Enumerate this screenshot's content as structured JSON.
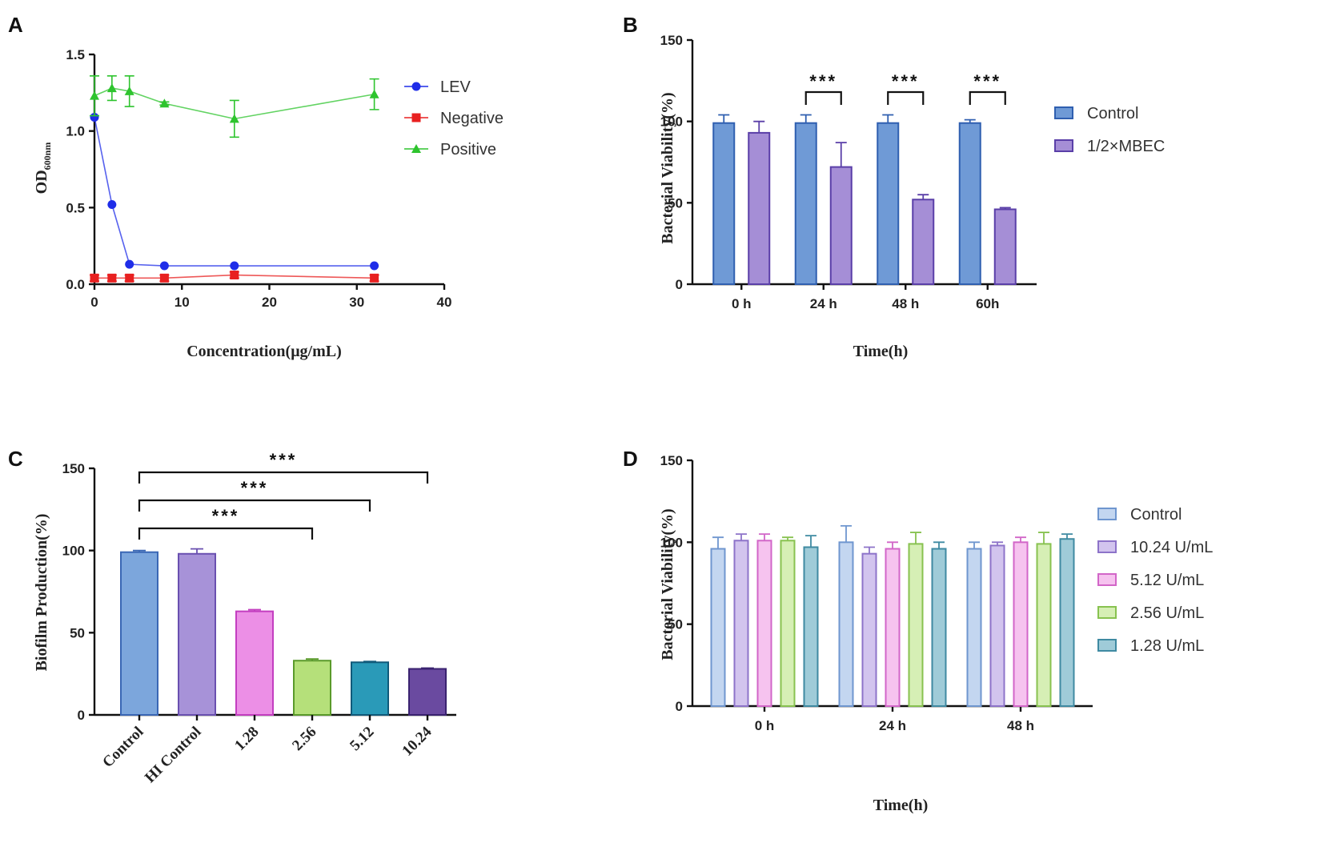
{
  "chart_data": [
    {
      "panel": "A",
      "type": "line",
      "xlabel": "Concentration(μg/mL)",
      "ylabel": "OD",
      "ylabel_sub": "600nm",
      "xlim": [
        0,
        40
      ],
      "ylim": [
        0,
        1.5
      ],
      "x_ticks": [
        "0",
        "10",
        "20",
        "30",
        "40"
      ],
      "y_ticks": [
        "0.0",
        "0.5",
        "1.0",
        "1.5"
      ],
      "series": [
        {
          "name": "LEV",
          "color": "#1f2de8",
          "marker": "circle",
          "x": [
            0,
            2,
            4,
            8,
            16,
            32
          ],
          "y": [
            1.09,
            0.52,
            0.13,
            0.12,
            0.12,
            0.12
          ],
          "err": [
            0,
            0,
            0,
            0,
            0,
            0
          ]
        },
        {
          "name": "Negative",
          "color": "#e82020",
          "marker": "square",
          "x": [
            0,
            2,
            4,
            8,
            16,
            32
          ],
          "y": [
            0.04,
            0.04,
            0.04,
            0.04,
            0.06,
            0.04
          ],
          "err": [
            0.02,
            0.02,
            0.02,
            0.02,
            0.02,
            0.02
          ]
        },
        {
          "name": "Positive",
          "color": "#2ec42e",
          "marker": "triangle",
          "x": [
            0,
            2,
            4,
            8,
            16,
            32
          ],
          "y": [
            1.23,
            1.28,
            1.26,
            1.18,
            1.08,
            1.24
          ],
          "err": [
            0.13,
            0.08,
            0.1,
            0.01,
            0.12,
            0.1
          ]
        }
      ]
    },
    {
      "panel": "B",
      "type": "bar",
      "xlabel": "Time(h)",
      "ylabel": "Bacterial  Viability(%)",
      "ylim": [
        0,
        150
      ],
      "y_ticks": [
        "0",
        "50",
        "100",
        "150"
      ],
      "categories": [
        "0 h",
        "24 h",
        "48 h",
        "60h"
      ],
      "series": [
        {
          "name": "Control",
          "fill": "#6f9ad6",
          "stroke": "#2f5fb0",
          "values": [
            99,
            99,
            99,
            99
          ],
          "err": [
            5,
            5,
            5,
            2
          ]
        },
        {
          "name": "1/2×MBEC",
          "fill": "#a58ed6",
          "stroke": "#5a3fa8",
          "values": [
            93,
            72,
            52,
            46
          ],
          "err": [
            7,
            15,
            3,
            1
          ]
        }
      ],
      "significance": [
        {
          "group": 1,
          "label": "***"
        },
        {
          "group": 2,
          "label": "***"
        },
        {
          "group": 3,
          "label": "***"
        }
      ]
    },
    {
      "panel": "C",
      "type": "bar",
      "xlabel": "",
      "ylabel": "Biofilm Production(%)",
      "ylim": [
        0,
        150
      ],
      "y_ticks": [
        "0",
        "50",
        "100",
        "150"
      ],
      "categories": [
        "Control",
        "HI Control",
        "1.28",
        "2.56",
        "5.12",
        "10.24"
      ],
      "bar_fills": [
        "#7ca6dc",
        "#a792d8",
        "#ec8fe6",
        "#b5e07a",
        "#2a9ab8",
        "#6a4aa0"
      ],
      "bar_strokes": [
        "#3a67b5",
        "#6a50b0",
        "#c33ec0",
        "#5a9a2a",
        "#105a7a",
        "#3a2270"
      ],
      "values": [
        99,
        98,
        63,
        33,
        32,
        28
      ],
      "err": [
        1,
        3,
        1,
        1,
        0.5,
        0.5
      ],
      "significance": [
        {
          "from": 0,
          "to": 3,
          "label": "***"
        },
        {
          "from": 0,
          "to": 4,
          "label": "***"
        },
        {
          "from": 0,
          "to": 5,
          "label": "***"
        }
      ]
    },
    {
      "panel": "D",
      "type": "bar",
      "xlabel": "Time(h)",
      "ylabel": "Bacterial  Viability(%)",
      "ylim": [
        0,
        150
      ],
      "y_ticks": [
        "0",
        "50",
        "100",
        "150"
      ],
      "categories": [
        "0 h",
        "24 h",
        "48 h"
      ],
      "series": [
        {
          "name": "Control",
          "fill": "#c3d6f0",
          "stroke": "#6f96cf",
          "values": [
            96,
            100,
            96
          ],
          "err": [
            7,
            10,
            4
          ]
        },
        {
          "name": "10.24 U/mL",
          "fill": "#d2c4ee",
          "stroke": "#8d73c9",
          "values": [
            101,
            93,
            98
          ],
          "err": [
            4,
            4,
            2
          ]
        },
        {
          "name": "5.12 U/mL",
          "fill": "#f6c3ef",
          "stroke": "#d266c8",
          "values": [
            101,
            96,
            100
          ],
          "err": [
            4,
            4,
            3
          ]
        },
        {
          "name": "2.56 U/mL",
          "fill": "#d6efb5",
          "stroke": "#88c250",
          "values": [
            101,
            99,
            99
          ],
          "err": [
            2,
            7,
            7
          ]
        },
        {
          "name": "1.28 U/mL",
          "fill": "#9fcbd8",
          "stroke": "#3f8aa2",
          "values": [
            97,
            96,
            102
          ],
          "err": [
            7,
            4,
            3
          ]
        }
      ]
    }
  ]
}
